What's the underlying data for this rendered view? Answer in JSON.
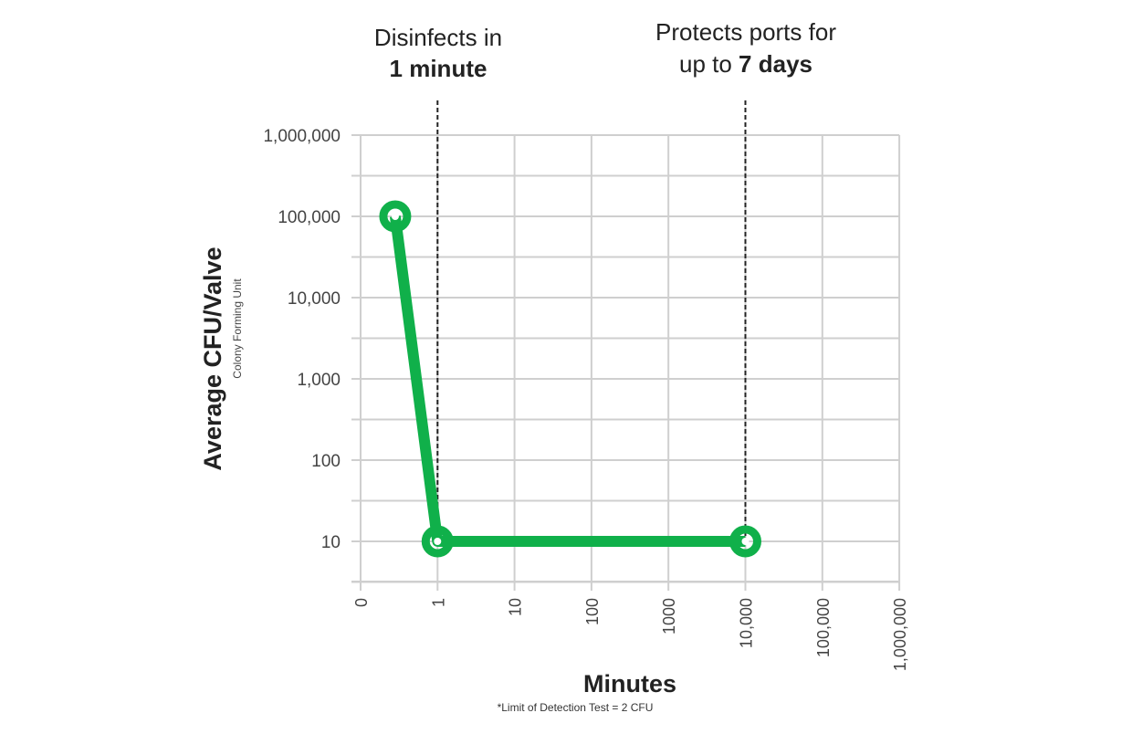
{
  "chart_data": {
    "type": "line",
    "title": "",
    "xlabel": "Minutes",
    "ylabel": "Average CFU/Valve",
    "ylabel_sub": "Colony Forming Unit",
    "footnote": "*Limit of Detection Test = 2 CFU",
    "x_scale": "log-categorical",
    "y_scale": "log",
    "x_ticks": [
      "0",
      "1",
      "10",
      "100",
      "1000",
      "10,000",
      "100,000",
      "1,000,000"
    ],
    "y_ticks": [
      "10",
      "100",
      "1,000",
      "10,000",
      "100,000",
      "1,000,000"
    ],
    "ylim": [
      3.16,
      1000000
    ],
    "grid": true,
    "series": [
      {
        "x": [
          0.45,
          1,
          10000
        ],
        "y": [
          100000,
          10,
          10
        ],
        "color": "#10b04a"
      }
    ],
    "annotations": [
      {
        "x": 1,
        "line1": "Disinfects in",
        "line2_bold": "1 minute",
        "line2_prefix": ""
      },
      {
        "x": 10000,
        "line1": "Protects ports for",
        "line2_prefix": "up to ",
        "line2_bold": "7 days"
      }
    ]
  }
}
